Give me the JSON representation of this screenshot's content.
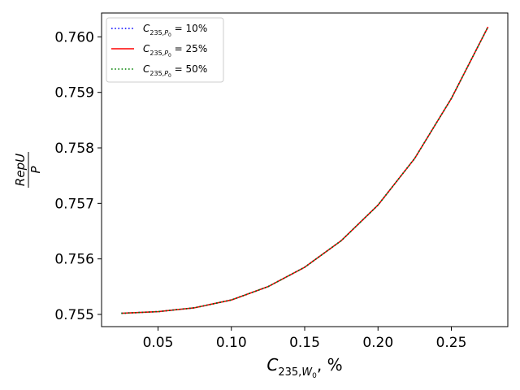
{
  "chart_data": {
    "type": "line",
    "xlabel": {
      "base": "C",
      "sub": "235,",
      "subvar": "W",
      "subsub": "0",
      "suffix": ", %"
    },
    "ylabel": {
      "numerator": "RepU",
      "denominator": "P"
    },
    "xlim": [
      0.0115,
      0.2885
    ],
    "ylim": [
      0.75478,
      0.76043
    ],
    "xticks": [
      0.05,
      0.1,
      0.15,
      0.2,
      0.25
    ],
    "xtick_labels": [
      "0.05",
      "0.10",
      "0.15",
      "0.20",
      "0.25"
    ],
    "yticks": [
      0.755,
      0.756,
      0.757,
      0.758,
      0.759,
      0.76
    ],
    "ytick_labels": [
      "0.755",
      "0.756",
      "0.757",
      "0.758",
      "0.759",
      "0.760"
    ],
    "grid": false,
    "legend_position": "top-left",
    "x": [
      0.025,
      0.05,
      0.075,
      0.1,
      0.125,
      0.15,
      0.175,
      0.2,
      0.225,
      0.25,
      0.275
    ],
    "series": [
      {
        "name": "C235,P0 = 10%",
        "legend": {
          "base": "C",
          "sub": "235,",
          "subvar": "P",
          "subsub": "0",
          "suffix": " = 10%"
        },
        "color": "#0000ff",
        "style": "dotted",
        "values": [
          0.75502,
          0.75505,
          0.75512,
          0.75526,
          0.7555,
          0.75585,
          0.75633,
          0.75697,
          0.75781,
          0.75889,
          0.76018
        ]
      },
      {
        "name": "C235,P0 = 25%",
        "legend": {
          "base": "C",
          "sub": "235,",
          "subvar": "P",
          "subsub": "0",
          "suffix": " = 25%"
        },
        "color": "#ff0000",
        "style": "solid",
        "values": [
          0.75502,
          0.75505,
          0.75512,
          0.75526,
          0.7555,
          0.75585,
          0.75633,
          0.75697,
          0.75781,
          0.75889,
          0.76018
        ]
      },
      {
        "name": "C235,P0 = 50%",
        "legend": {
          "base": "C",
          "sub": "235,",
          "subvar": "P",
          "subsub": "0",
          "suffix": " = 50%"
        },
        "color": "#008000",
        "style": "dotted",
        "values": [
          0.75502,
          0.75505,
          0.75512,
          0.75526,
          0.7555,
          0.75585,
          0.75633,
          0.75697,
          0.75781,
          0.75889,
          0.76018
        ]
      }
    ]
  }
}
